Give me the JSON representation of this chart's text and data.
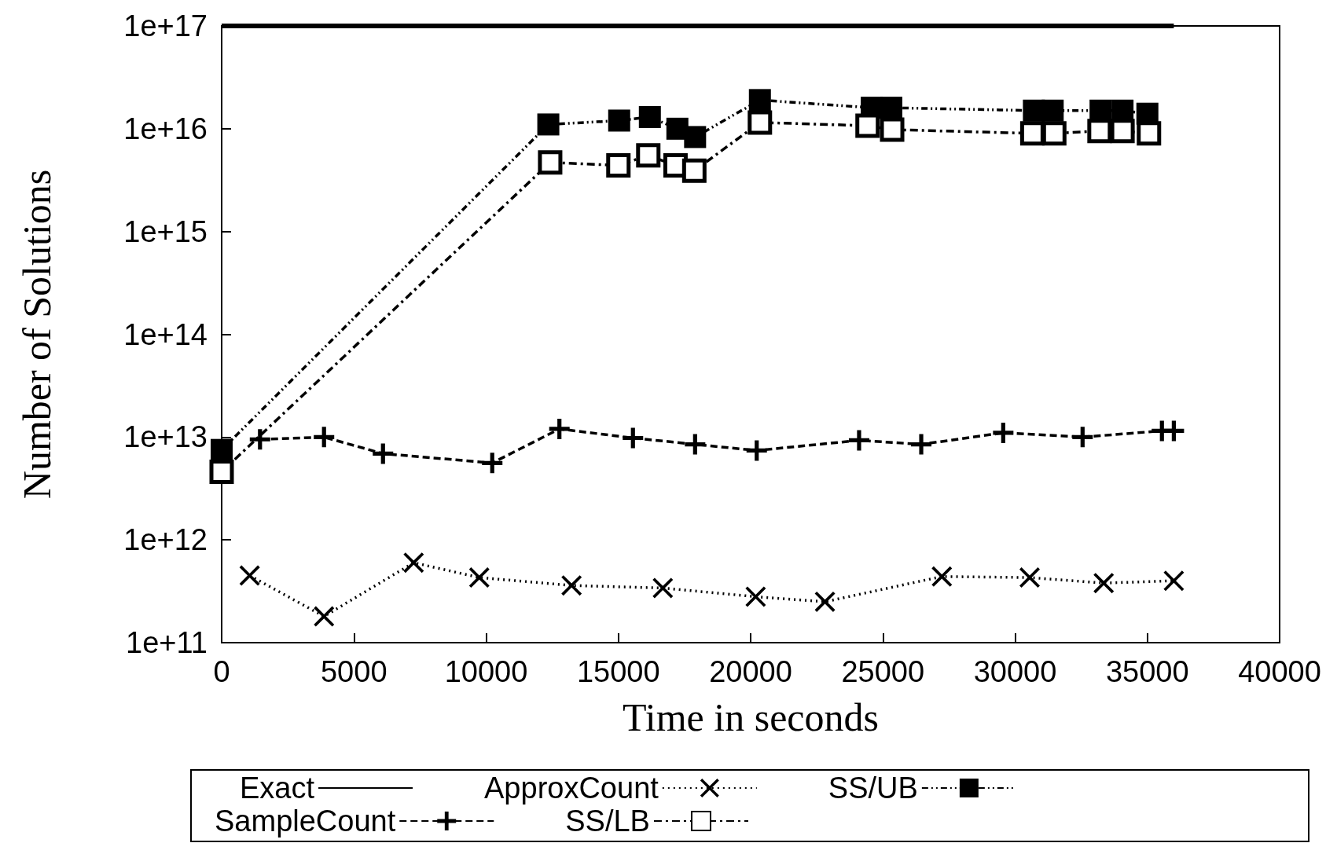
{
  "chart_data": {
    "type": "line",
    "xlabel": "Time in seconds",
    "ylabel": "Number of Solutions",
    "log": "y",
    "grid": false,
    "legend": "bottom",
    "xlim": [
      0,
      40000
    ],
    "xticks": [
      0,
      5000,
      10000,
      15000,
      20000,
      25000,
      30000,
      35000,
      40000
    ],
    "ylim": [
      100000000000.0,
      1e+17
    ],
    "yticks": [
      {
        "value": 100000000000.0,
        "label": "1e+11"
      },
      {
        "value": 1000000000000.0,
        "label": "1e+12"
      },
      {
        "value": 10000000000000.0,
        "label": "1e+13"
      },
      {
        "value": 100000000000000.0,
        "label": "1e+14"
      },
      {
        "value": 1000000000000000.0,
        "label": "1e+15"
      },
      {
        "value": 1e+16,
        "label": "1e+16"
      },
      {
        "value": 1e+17,
        "label": "1e+17"
      }
    ],
    "series": [
      {
        "name": "Exact",
        "color": "#000000",
        "line_style": "solid",
        "marker": "none",
        "x": [
          0,
          36000
        ],
        "values": [
          1e+17,
          1e+17
        ]
      },
      {
        "name": "ApproxCount",
        "color": "#000000",
        "line_style": "dotted",
        "marker": "cross",
        "x": [
          1060,
          3870,
          7260,
          9740,
          13230,
          16680,
          20190,
          22810,
          27230,
          30550,
          33350,
          36000
        ],
        "values": [
          450000000000.0,
          180000000000.0,
          600000000000.0,
          430000000000.0,
          360000000000.0,
          340000000000.0,
          280000000000.0,
          250000000000.0,
          440000000000.0,
          430000000000.0,
          380000000000.0,
          400000000000.0
        ]
      },
      {
        "name": "SS/UB",
        "color": "#000000",
        "line_style": "dashdotdot",
        "marker": "square",
        "x": [
          0,
          12350,
          15030,
          16190,
          17230,
          17900,
          20350,
          24580,
          25320,
          30710,
          31420,
          33230,
          34060,
          35000
        ],
        "values": [
          7500000000000.0,
          1.1e+16,
          1.2e+16,
          1.3e+16,
          1e+16,
          8300000000000000.0,
          1.9e+16,
          1.6e+16,
          1.6e+16,
          1.5e+16,
          1.5e+16,
          1.5e+16,
          1.5e+16,
          1.4e+16
        ]
      },
      {
        "name": "SampleCount",
        "color": "#000000",
        "line_style": "dashed",
        "marker": "plus",
        "x": [
          1450,
          3870,
          6100,
          10230,
          12770,
          15550,
          17900,
          20230,
          24100,
          26450,
          29550,
          32550,
          35550,
          36000
        ],
        "values": [
          9500000000000.0,
          10000000000000.0,
          6900000000000.0,
          5600000000000.0,
          12000000000000.0,
          9800000000000.0,
          8500000000000.0,
          7400000000000.0,
          9300000000000.0,
          8500000000000.0,
          11000000000000.0,
          10000000000000.0,
          11500000000000.0,
          11500000000000.0
        ]
      },
      {
        "name": "SS/LB",
        "color": "#000000",
        "line_style": "dashdot",
        "marker": "square-open",
        "x": [
          0,
          12420,
          15000,
          16130,
          17160,
          17870,
          20350,
          24420,
          25350,
          30650,
          31480,
          33190,
          34060,
          35060
        ],
        "values": [
          4600000000000.0,
          4700000000000000.0,
          4400000000000000.0,
          5500000000000000.0,
          4400000000000000.0,
          3900000000000000.0,
          1.15e+16,
          1.07e+16,
          9800000000000000.0,
          9000000000000000.0,
          9000000000000000.0,
          9500000000000000.0,
          9500000000000000.0,
          9000000000000000.0
        ]
      }
    ]
  }
}
